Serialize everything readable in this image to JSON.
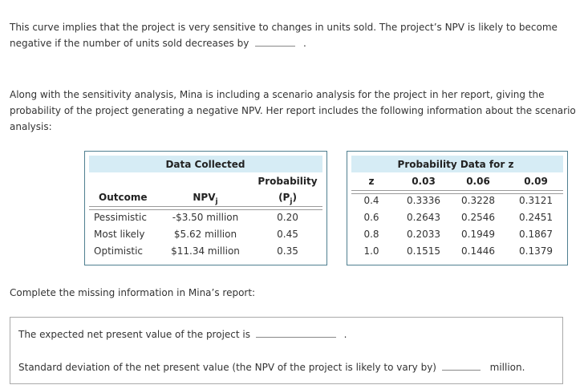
{
  "intro": {
    "line1": "This curve implies that the project is very sensitive to changes in units sold. The project’s NPV is likely to become",
    "line2_prefix": "negative if the number of units sold decreases by",
    "line2_suffix": "."
  },
  "scenario_text": {
    "line1": "Along with the sensitivity analysis, Mina is including a scenario analysis for the project in her report, giving the",
    "line2": "probability of the project generating a negative NPV. Her report includes the following information about the scenario",
    "line3": "analysis:"
  },
  "data_table": {
    "title": "Data Collected",
    "col_outcome": "Outcome",
    "col_npv": "NPV",
    "col_npv_sub": "j",
    "col_prob_line1": "Probability",
    "col_prob_line2_open": "(P",
    "col_prob_line2_sub": "j",
    "col_prob_line2_close": ")",
    "rows": [
      {
        "outcome": "Pessimistic",
        "npv": "-$3.50 million",
        "prob": "0.20"
      },
      {
        "outcome": "Most likely",
        "npv": "$5.62 million",
        "prob": "0.45"
      },
      {
        "outcome": "Optimistic",
        "npv": "$11.34 million",
        "prob": "0.35"
      }
    ]
  },
  "prob_table": {
    "title": "Probability Data for z",
    "z_header": "z",
    "cols": [
      "0.03",
      "0.06",
      "0.09"
    ],
    "rows": [
      {
        "z": "0.4",
        "v": [
          "0.3336",
          "0.3228",
          "0.3121"
        ]
      },
      {
        "z": "0.6",
        "v": [
          "0.2643",
          "0.2546",
          "0.2451"
        ]
      },
      {
        "z": "0.8",
        "v": [
          "0.2033",
          "0.1949",
          "0.1867"
        ]
      },
      {
        "z": "1.0",
        "v": [
          "0.1515",
          "0.1446",
          "0.1379"
        ]
      }
    ]
  },
  "complete_text": "Complete the missing information in Mina’s report:",
  "answers": {
    "expected_npv_label": "The expected net present value of the project is",
    "expected_npv_suffix": ".",
    "std_dev_label": "Standard deviation of the net present value (the NPV of the project is likely to vary by)",
    "std_dev_unit": "million."
  }
}
